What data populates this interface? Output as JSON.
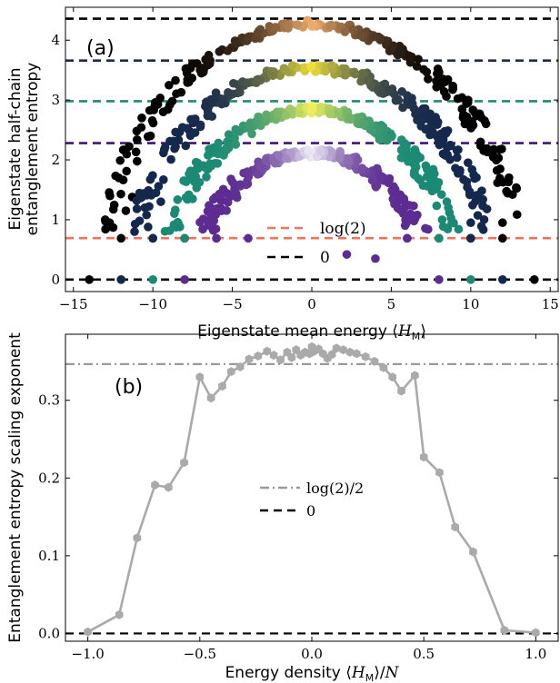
{
  "chart_data": [
    {
      "panel": "(a)",
      "type": "scatter",
      "xlabel": "Eigenstate mean energy ⟨H_M⟩",
      "ylabel_line1": "Eigenstate half-chain",
      "ylabel_line2": "entanglement entropy",
      "xlim": [
        -15.5,
        15.5
      ],
      "ylim": [
        -0.2,
        4.55
      ],
      "xticks": [
        -15,
        -10,
        -5,
        0,
        5,
        10,
        15
      ],
      "yticks": [
        0,
        1,
        2,
        3,
        4
      ],
      "grid": false,
      "legend_position": "center-bottom",
      "reference_lines": [
        {
          "label": "",
          "y": 4.36,
          "color": "#000000",
          "style": "dashed"
        },
        {
          "label": "",
          "y": 3.66,
          "color": "#1c2a4e",
          "style": "dashed"
        },
        {
          "label": "",
          "y": 2.98,
          "color": "#1e8a6e",
          "style": "dashed"
        },
        {
          "label": "",
          "y": 2.28,
          "color": "#3f1478",
          "style": "dashed"
        },
        {
          "label": "log(2)",
          "y": 0.693,
          "color": "#f2735a",
          "style": "dashed"
        },
        {
          "label": "0",
          "y": 0,
          "color": "#000000",
          "style": "dashed"
        }
      ],
      "series": [
        {
          "half_width": 14,
          "peak": 4.3,
          "inner_color": "#000000",
          "peak_color": "#f5b070",
          "edge_points": [
            [
              -14,
              0
            ],
            [
              14,
              0
            ],
            [
              -12,
              0.69
            ],
            [
              12,
              0.69
            ],
            [
              -10,
              0.69
            ],
            [
              10,
              0.69
            ],
            [
              -13,
              1.0
            ],
            [
              -12.5,
              0.87
            ],
            [
              12,
              0.95
            ],
            [
              -11.7,
              1.15
            ],
            [
              -11.3,
              1.38
            ]
          ]
        },
        {
          "half_width": 12,
          "peak": 3.58,
          "inner_color": "#14284d",
          "peak_color": "#f2e23a",
          "edge_points": [
            [
              -12,
              0
            ],
            [
              12,
              0
            ],
            [
              -10,
              0.69
            ],
            [
              10,
              0.69
            ],
            [
              -8,
              0.69
            ],
            [
              8,
              0.69
            ],
            [
              -10.3,
              0.88
            ],
            [
              10,
              0.95
            ],
            [
              -9.5,
              1.3
            ]
          ]
        },
        {
          "half_width": 10,
          "peak": 2.88,
          "inner_color": "#1a8a74",
          "peak_color": "#f3ef5c",
          "edge_points": [
            [
              -10,
              0
            ],
            [
              10,
              0
            ],
            [
              -8,
              0.69
            ],
            [
              8,
              0.69
            ],
            [
              -6,
              0.69
            ],
            [
              6,
              0.69
            ],
            [
              -8.3,
              0.88
            ],
            [
              8.2,
              1.0
            ]
          ]
        },
        {
          "half_width": 8,
          "peak": 2.16,
          "inner_color": "#5c2c92",
          "peak_color": "#f5f5fa",
          "edge_points": [
            [
              -8,
              0
            ],
            [
              8,
              0
            ],
            [
              -6,
              0.69
            ],
            [
              6,
              0.69
            ],
            [
              4,
              0.35
            ],
            [
              -4,
              0.69
            ],
            [
              -6.2,
              0.82
            ],
            [
              2.2,
              0.42
            ]
          ]
        }
      ]
    },
    {
      "panel": "(b)",
      "type": "line",
      "xlabel": "Energy density ⟨H_M⟩/N",
      "ylabel": "Entanglement entropy scaling exponent",
      "xlim": [
        -1.1,
        1.1
      ],
      "ylim": [
        -0.01,
        0.385
      ],
      "xticks": [
        -1.0,
        -0.5,
        0.0,
        0.5,
        1.0
      ],
      "yticks": [
        0.0,
        0.1,
        0.2,
        0.3
      ],
      "grid": false,
      "legend_position": "center",
      "reference_lines": [
        {
          "label": "log(2)/2",
          "y": 0.3466,
          "color": "#999999",
          "style": "dashdot"
        },
        {
          "label": "0",
          "y": 0,
          "color": "#000000",
          "style": "dashed"
        }
      ],
      "series": [
        {
          "color": "#aaaaaa",
          "x": [
            -1.0,
            -0.86,
            -0.78,
            -0.7,
            -0.64,
            -0.57,
            -0.5,
            -0.45,
            -0.4,
            -0.36,
            -0.32,
            -0.28,
            -0.24,
            -0.2,
            -0.17,
            -0.14,
            -0.11,
            -0.09,
            -0.07,
            -0.05,
            -0.03,
            -0.01,
            0.0,
            0.01,
            0.03,
            0.05,
            0.07,
            0.09,
            0.11,
            0.14,
            0.17,
            0.2,
            0.24,
            0.28,
            0.32,
            0.36,
            0.4,
            0.46,
            0.5,
            0.57,
            0.64,
            0.72,
            0.86,
            1.0
          ],
          "y": [
            0.002,
            0.024,
            0.123,
            0.191,
            0.188,
            0.22,
            0.33,
            0.303,
            0.318,
            0.337,
            0.343,
            0.353,
            0.357,
            0.363,
            0.358,
            0.352,
            0.362,
            0.355,
            0.365,
            0.358,
            0.362,
            0.36,
            0.369,
            0.363,
            0.366,
            0.36,
            0.354,
            0.359,
            0.367,
            0.365,
            0.362,
            0.36,
            0.356,
            0.35,
            0.342,
            0.33,
            0.312,
            0.332,
            0.227,
            0.207,
            0.137,
            0.105,
            0.004,
            0.001
          ]
        }
      ]
    }
  ]
}
